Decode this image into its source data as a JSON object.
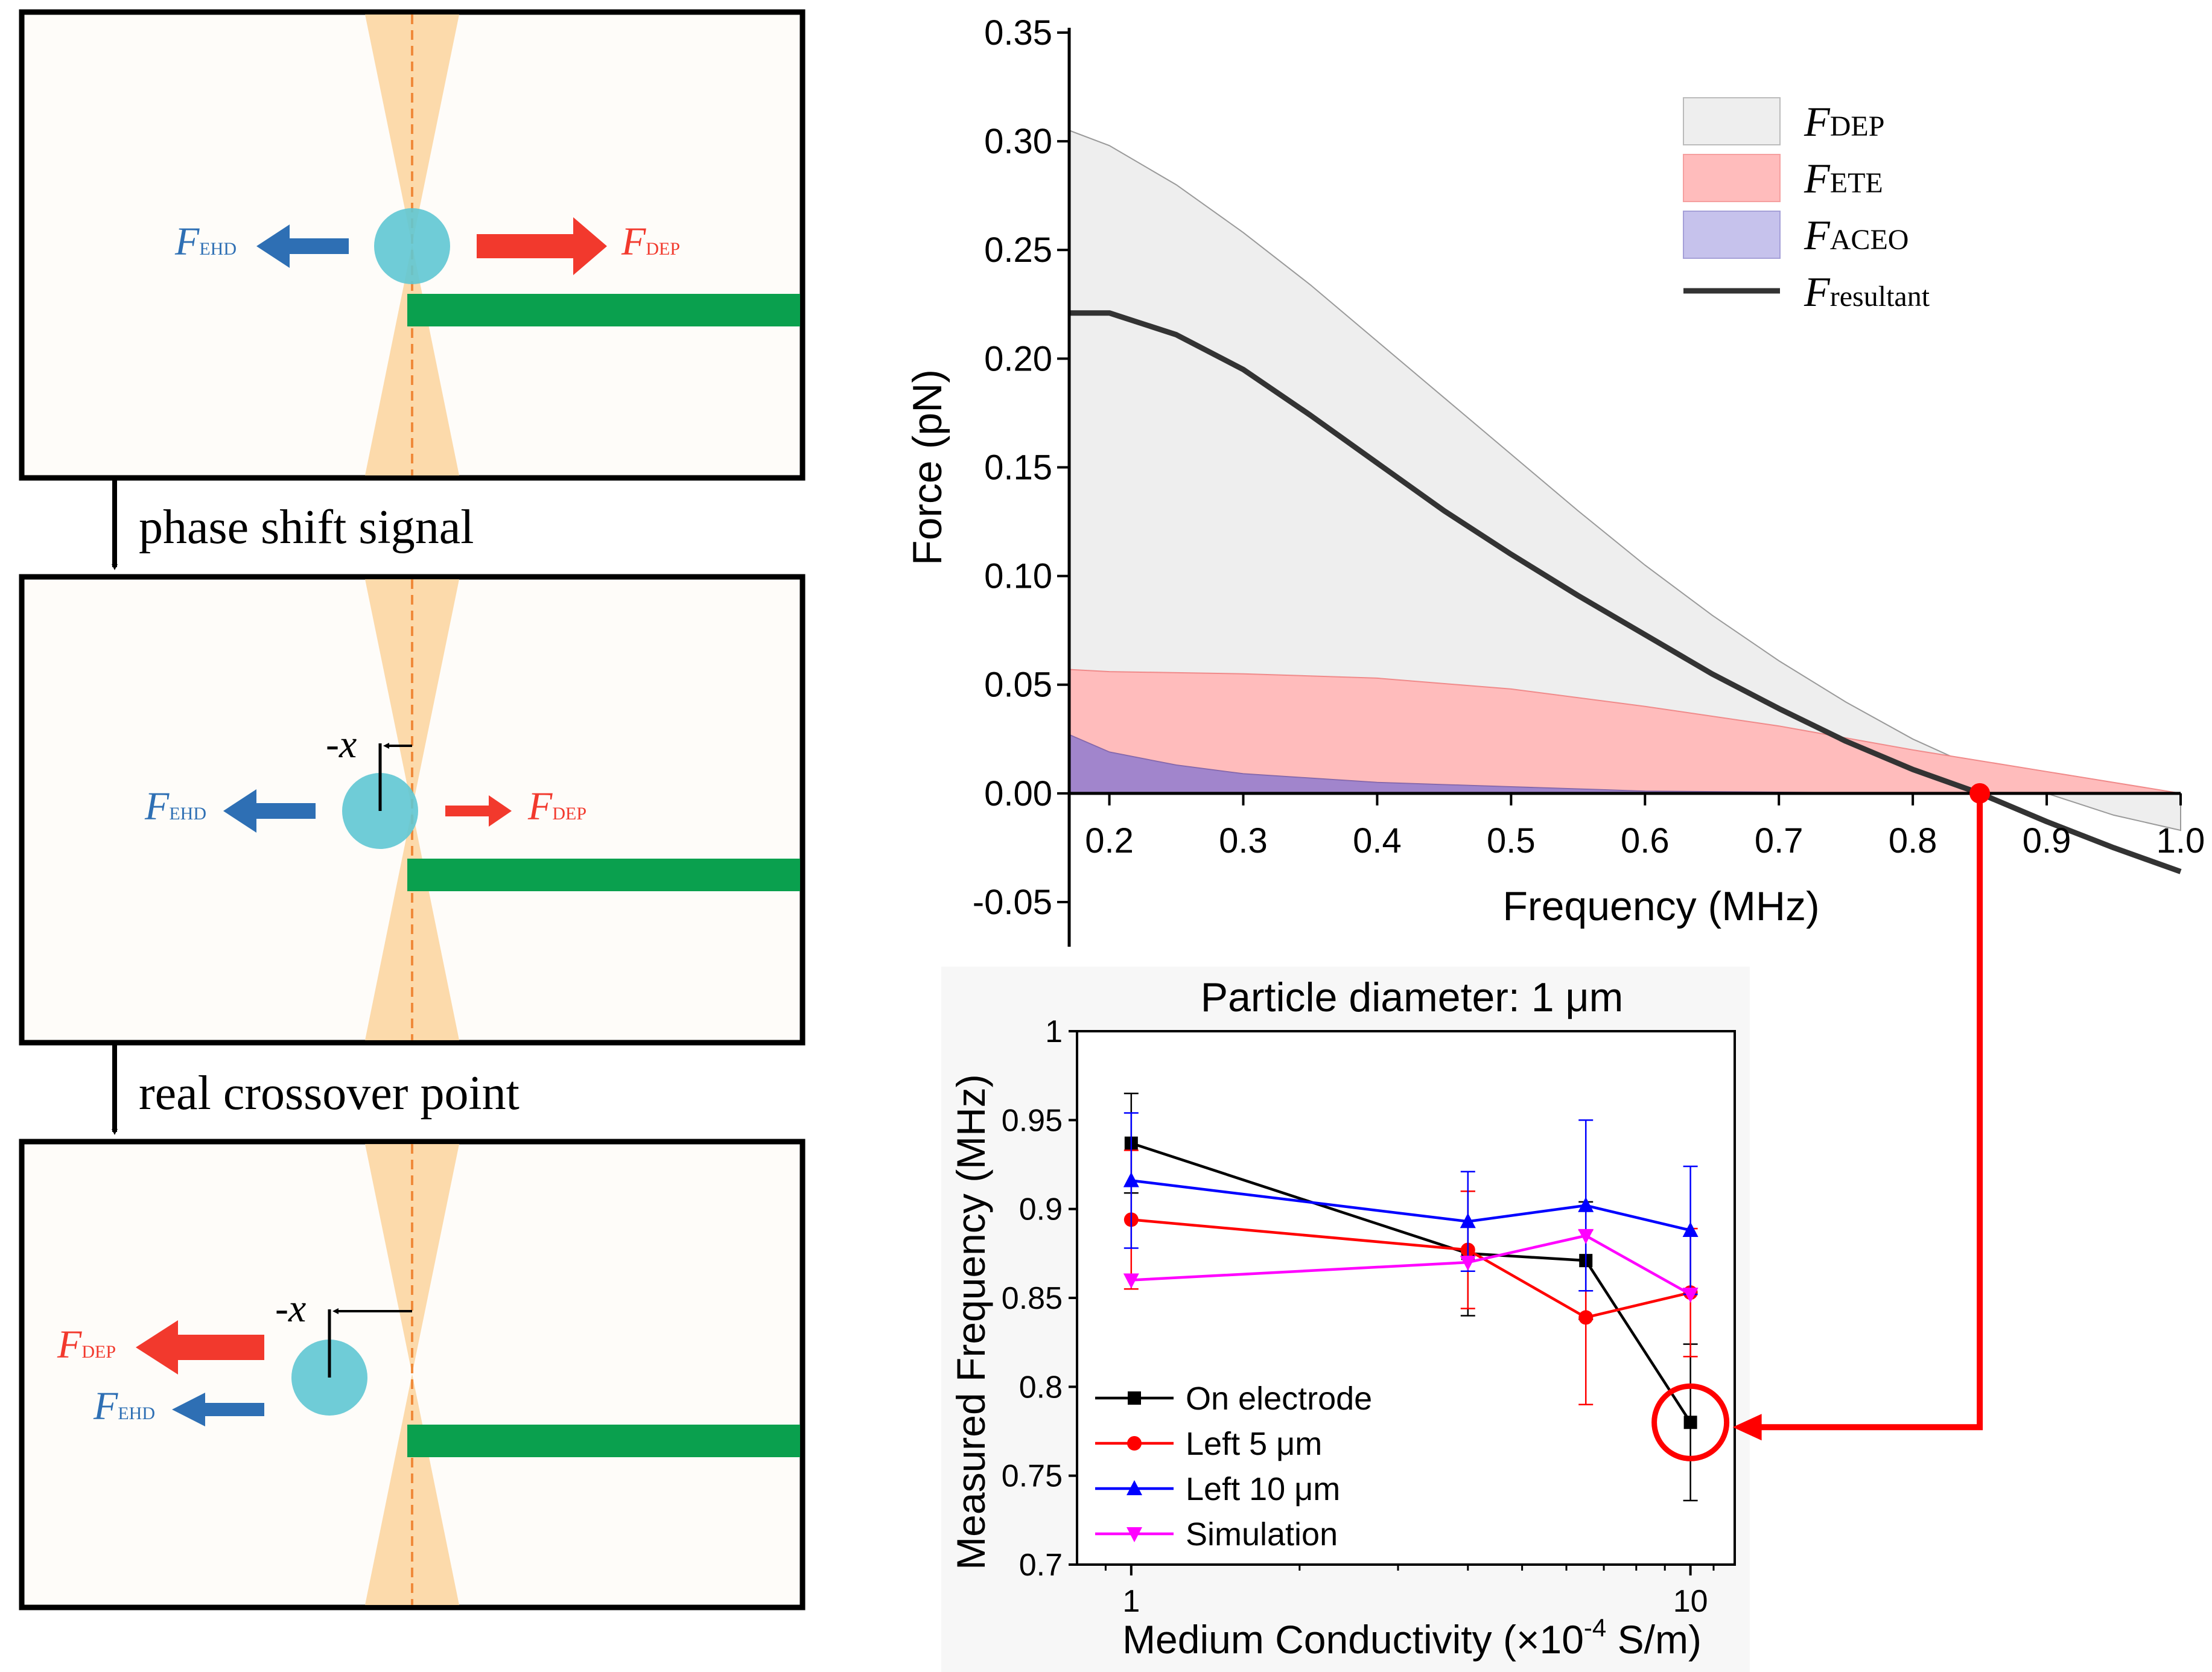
{
  "panels": {
    "transition_1": "phase shift signal",
    "transition_2": "real crossover point",
    "panel_1": {
      "left_force": {
        "main": "F",
        "sub": "EHD"
      },
      "right_force": {
        "main": "F",
        "sub": "DEP"
      }
    },
    "panel_2": {
      "left_force": {
        "main": "F",
        "sub": "EHD"
      },
      "right_force": {
        "main": "F",
        "sub": "DEP"
      },
      "offset_label": "-x"
    },
    "panel_3": {
      "top_force": {
        "main": "F",
        "sub": "DEP"
      },
      "bottom_force": {
        "main": "F",
        "sub": "EHD"
      },
      "offset_label": "-x"
    }
  },
  "chart_data": [
    {
      "type": "area",
      "xlabel": "Frequency (MHz)",
      "ylabel": "Force (pN)",
      "xlim": [
        0.17,
        1.0
      ],
      "ylim": [
        -0.065,
        0.35
      ],
      "xticks": [
        "0.2",
        "0.3",
        "0.4",
        "0.5",
        "0.6",
        "0.7",
        "0.8",
        "0.9",
        "1.0"
      ],
      "yticks": [
        "-0.05",
        "0.00",
        "0.05",
        "0.10",
        "0.15",
        "0.20",
        "0.25",
        "0.30",
        "0.35"
      ],
      "legend": [
        {
          "main": "F",
          "sub": "DEP"
        },
        {
          "main": "F",
          "sub": "ETE"
        },
        {
          "main": "F",
          "sub": "ACEO"
        },
        {
          "main": "F",
          "sub": "resultant"
        }
      ],
      "series": [
        {
          "name": "F_DEP",
          "x": [
            0.17,
            0.2,
            0.25,
            0.3,
            0.35,
            0.4,
            0.45,
            0.5,
            0.55,
            0.6,
            0.65,
            0.7,
            0.75,
            0.8,
            0.85,
            0.9,
            0.95,
            1.0
          ],
          "y": [
            0.305,
            0.298,
            0.28,
            0.258,
            0.234,
            0.208,
            0.182,
            0.156,
            0.13,
            0.105,
            0.082,
            0.061,
            0.042,
            0.025,
            0.011,
            0.0,
            -0.01,
            -0.017
          ]
        },
        {
          "name": "F_ETE",
          "x": [
            0.17,
            0.2,
            0.3,
            0.4,
            0.5,
            0.6,
            0.7,
            0.8,
            0.9,
            1.0
          ],
          "y": [
            0.057,
            0.056,
            0.055,
            0.053,
            0.048,
            0.04,
            0.031,
            0.02,
            0.01,
            0.0
          ]
        },
        {
          "name": "F_ACEO",
          "x": [
            0.17,
            0.2,
            0.25,
            0.3,
            0.4,
            0.5,
            0.6,
            0.7,
            0.8
          ],
          "y": [
            0.027,
            0.019,
            0.013,
            0.009,
            0.005,
            0.003,
            0.001,
            0.0005,
            0.0
          ]
        },
        {
          "name": "F_resultant",
          "x": [
            0.17,
            0.2,
            0.22,
            0.25,
            0.3,
            0.35,
            0.4,
            0.45,
            0.5,
            0.55,
            0.6,
            0.65,
            0.7,
            0.75,
            0.8,
            0.85,
            0.9,
            0.95,
            1.0
          ],
          "y": [
            0.221,
            0.221,
            0.217,
            0.211,
            0.195,
            0.174,
            0.152,
            0.13,
            0.11,
            0.091,
            0.073,
            0.055,
            0.039,
            0.024,
            0.011,
            0.0,
            -0.013,
            -0.025,
            -0.036
          ]
        }
      ],
      "crossover_point": {
        "x": 0.85,
        "y": 0.0
      }
    },
    {
      "type": "line",
      "title": "Particle diameter: 1 μm",
      "xlabel": "Medium Conductivity (×10",
      "xlabel_sup": "-4",
      "xlabel_end": " S/m)",
      "ylabel": "Measured Frequency (MHz)",
      "xscale": "log",
      "xlim": [
        0.8,
        12
      ],
      "ylim": [
        0.7,
        1.0
      ],
      "xticks": [
        "1",
        "10"
      ],
      "yticks": [
        "0.7",
        "0.75",
        "0.8",
        "0.85",
        "0.9",
        "0.95",
        "1"
      ],
      "series": [
        {
          "name": "On electrode",
          "color": "#000000",
          "marker": "square",
          "x": [
            1,
            4,
            6.5,
            10
          ],
          "y": [
            0.937,
            0.875,
            0.871,
            0.78
          ],
          "err": [
            0.028,
            0.035,
            0.033,
            0.044
          ]
        },
        {
          "name": "Left 5 μm",
          "color": "#ff0000",
          "marker": "circle",
          "x": [
            1,
            4,
            6.5,
            10
          ],
          "y": [
            0.894,
            0.877,
            0.839,
            0.853
          ],
          "err": [
            0.039,
            0.033,
            0.049,
            0.036
          ]
        },
        {
          "name": "Left 10 μm",
          "color": "#0000ff",
          "marker": "triangle-up",
          "x": [
            1,
            4,
            6.5,
            10
          ],
          "y": [
            0.916,
            0.893,
            0.902,
            0.888
          ],
          "err": [
            0.038,
            0.028,
            0.048,
            0.036
          ]
        },
        {
          "name": "Simulation",
          "color": "#ff00ff",
          "marker": "triangle-down",
          "x": [
            1,
            4,
            6.5,
            10
          ],
          "y": [
            0.86,
            0.87,
            0.885,
            0.852
          ],
          "err": [
            0,
            0,
            0,
            0
          ]
        }
      ],
      "highlight": {
        "x": 10,
        "y": 0.78
      }
    }
  ]
}
